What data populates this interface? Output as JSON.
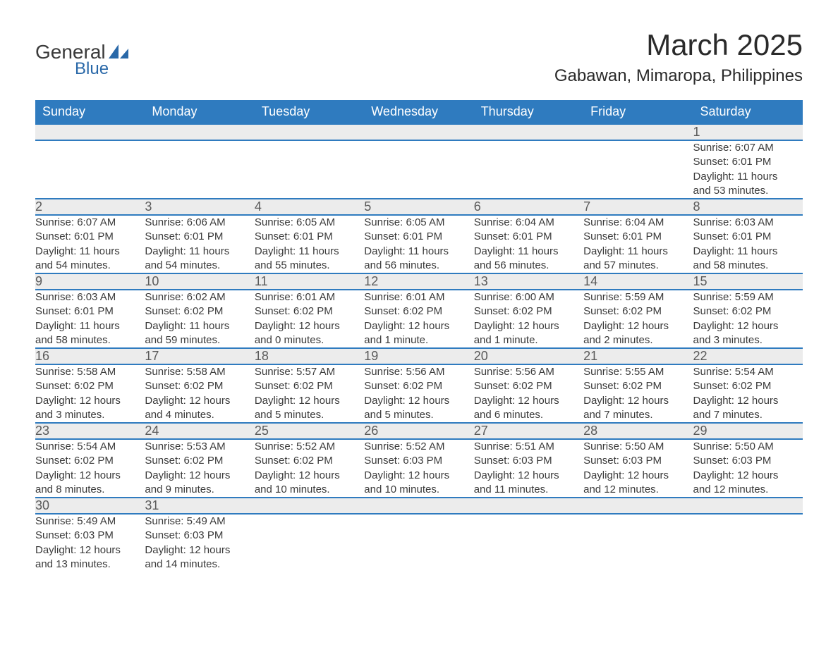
{
  "logo": {
    "text1": "General",
    "text2": "Blue",
    "shape_color": "#2968a8"
  },
  "title": {
    "month": "March 2025",
    "location": "Gabawan, Mimaropa, Philippines"
  },
  "colors": {
    "header_bg": "#2f7bbf",
    "header_text": "#ffffff",
    "daynum_bg": "#ececec",
    "border": "#2f7bbf",
    "text": "#3a3a3a"
  },
  "day_headers": [
    "Sunday",
    "Monday",
    "Tuesday",
    "Wednesday",
    "Thursday",
    "Friday",
    "Saturday"
  ],
  "weeks": [
    [
      null,
      null,
      null,
      null,
      null,
      null,
      {
        "n": "1",
        "sr": "Sunrise: 6:07 AM",
        "ss": "Sunset: 6:01 PM",
        "d1": "Daylight: 11 hours",
        "d2": "and 53 minutes."
      }
    ],
    [
      {
        "n": "2",
        "sr": "Sunrise: 6:07 AM",
        "ss": "Sunset: 6:01 PM",
        "d1": "Daylight: 11 hours",
        "d2": "and 54 minutes."
      },
      {
        "n": "3",
        "sr": "Sunrise: 6:06 AM",
        "ss": "Sunset: 6:01 PM",
        "d1": "Daylight: 11 hours",
        "d2": "and 54 minutes."
      },
      {
        "n": "4",
        "sr": "Sunrise: 6:05 AM",
        "ss": "Sunset: 6:01 PM",
        "d1": "Daylight: 11 hours",
        "d2": "and 55 minutes."
      },
      {
        "n": "5",
        "sr": "Sunrise: 6:05 AM",
        "ss": "Sunset: 6:01 PM",
        "d1": "Daylight: 11 hours",
        "d2": "and 56 minutes."
      },
      {
        "n": "6",
        "sr": "Sunrise: 6:04 AM",
        "ss": "Sunset: 6:01 PM",
        "d1": "Daylight: 11 hours",
        "d2": "and 56 minutes."
      },
      {
        "n": "7",
        "sr": "Sunrise: 6:04 AM",
        "ss": "Sunset: 6:01 PM",
        "d1": "Daylight: 11 hours",
        "d2": "and 57 minutes."
      },
      {
        "n": "8",
        "sr": "Sunrise: 6:03 AM",
        "ss": "Sunset: 6:01 PM",
        "d1": "Daylight: 11 hours",
        "d2": "and 58 minutes."
      }
    ],
    [
      {
        "n": "9",
        "sr": "Sunrise: 6:03 AM",
        "ss": "Sunset: 6:01 PM",
        "d1": "Daylight: 11 hours",
        "d2": "and 58 minutes."
      },
      {
        "n": "10",
        "sr": "Sunrise: 6:02 AM",
        "ss": "Sunset: 6:02 PM",
        "d1": "Daylight: 11 hours",
        "d2": "and 59 minutes."
      },
      {
        "n": "11",
        "sr": "Sunrise: 6:01 AM",
        "ss": "Sunset: 6:02 PM",
        "d1": "Daylight: 12 hours",
        "d2": "and 0 minutes."
      },
      {
        "n": "12",
        "sr": "Sunrise: 6:01 AM",
        "ss": "Sunset: 6:02 PM",
        "d1": "Daylight: 12 hours",
        "d2": "and 1 minute."
      },
      {
        "n": "13",
        "sr": "Sunrise: 6:00 AM",
        "ss": "Sunset: 6:02 PM",
        "d1": "Daylight: 12 hours",
        "d2": "and 1 minute."
      },
      {
        "n": "14",
        "sr": "Sunrise: 5:59 AM",
        "ss": "Sunset: 6:02 PM",
        "d1": "Daylight: 12 hours",
        "d2": "and 2 minutes."
      },
      {
        "n": "15",
        "sr": "Sunrise: 5:59 AM",
        "ss": "Sunset: 6:02 PM",
        "d1": "Daylight: 12 hours",
        "d2": "and 3 minutes."
      }
    ],
    [
      {
        "n": "16",
        "sr": "Sunrise: 5:58 AM",
        "ss": "Sunset: 6:02 PM",
        "d1": "Daylight: 12 hours",
        "d2": "and 3 minutes."
      },
      {
        "n": "17",
        "sr": "Sunrise: 5:58 AM",
        "ss": "Sunset: 6:02 PM",
        "d1": "Daylight: 12 hours",
        "d2": "and 4 minutes."
      },
      {
        "n": "18",
        "sr": "Sunrise: 5:57 AM",
        "ss": "Sunset: 6:02 PM",
        "d1": "Daylight: 12 hours",
        "d2": "and 5 minutes."
      },
      {
        "n": "19",
        "sr": "Sunrise: 5:56 AM",
        "ss": "Sunset: 6:02 PM",
        "d1": "Daylight: 12 hours",
        "d2": "and 5 minutes."
      },
      {
        "n": "20",
        "sr": "Sunrise: 5:56 AM",
        "ss": "Sunset: 6:02 PM",
        "d1": "Daylight: 12 hours",
        "d2": "and 6 minutes."
      },
      {
        "n": "21",
        "sr": "Sunrise: 5:55 AM",
        "ss": "Sunset: 6:02 PM",
        "d1": "Daylight: 12 hours",
        "d2": "and 7 minutes."
      },
      {
        "n": "22",
        "sr": "Sunrise: 5:54 AM",
        "ss": "Sunset: 6:02 PM",
        "d1": "Daylight: 12 hours",
        "d2": "and 7 minutes."
      }
    ],
    [
      {
        "n": "23",
        "sr": "Sunrise: 5:54 AM",
        "ss": "Sunset: 6:02 PM",
        "d1": "Daylight: 12 hours",
        "d2": "and 8 minutes."
      },
      {
        "n": "24",
        "sr": "Sunrise: 5:53 AM",
        "ss": "Sunset: 6:02 PM",
        "d1": "Daylight: 12 hours",
        "d2": "and 9 minutes."
      },
      {
        "n": "25",
        "sr": "Sunrise: 5:52 AM",
        "ss": "Sunset: 6:02 PM",
        "d1": "Daylight: 12 hours",
        "d2": "and 10 minutes."
      },
      {
        "n": "26",
        "sr": "Sunrise: 5:52 AM",
        "ss": "Sunset: 6:03 PM",
        "d1": "Daylight: 12 hours",
        "d2": "and 10 minutes."
      },
      {
        "n": "27",
        "sr": "Sunrise: 5:51 AM",
        "ss": "Sunset: 6:03 PM",
        "d1": "Daylight: 12 hours",
        "d2": "and 11 minutes."
      },
      {
        "n": "28",
        "sr": "Sunrise: 5:50 AM",
        "ss": "Sunset: 6:03 PM",
        "d1": "Daylight: 12 hours",
        "d2": "and 12 minutes."
      },
      {
        "n": "29",
        "sr": "Sunrise: 5:50 AM",
        "ss": "Sunset: 6:03 PM",
        "d1": "Daylight: 12 hours",
        "d2": "and 12 minutes."
      }
    ],
    [
      {
        "n": "30",
        "sr": "Sunrise: 5:49 AM",
        "ss": "Sunset: 6:03 PM",
        "d1": "Daylight: 12 hours",
        "d2": "and 13 minutes."
      },
      {
        "n": "31",
        "sr": "Sunrise: 5:49 AM",
        "ss": "Sunset: 6:03 PM",
        "d1": "Daylight: 12 hours",
        "d2": "and 14 minutes."
      },
      null,
      null,
      null,
      null,
      null
    ]
  ]
}
